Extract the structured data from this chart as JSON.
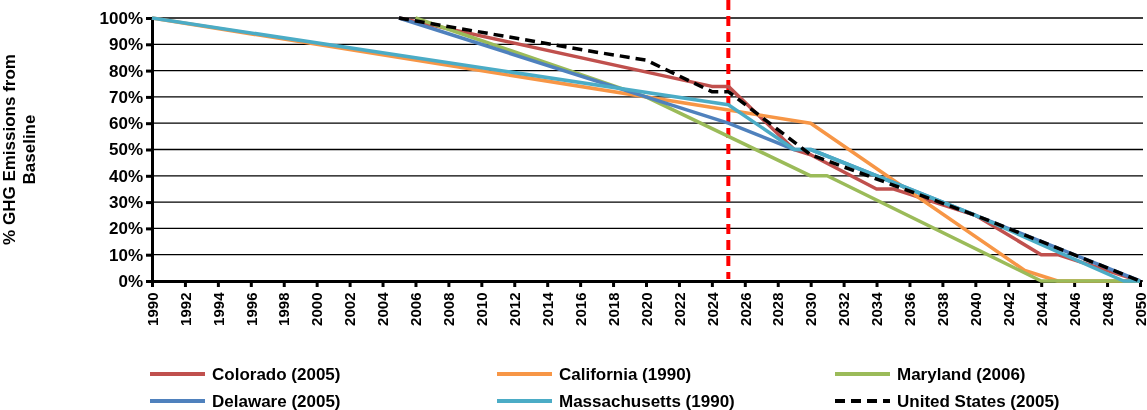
{
  "chart_data": {
    "type": "line",
    "ylabel": "% GHG Emissions from Baseline",
    "xlim": [
      1990,
      2050
    ],
    "xticks": [
      1990,
      1992,
      1994,
      1996,
      1998,
      2000,
      2002,
      2004,
      2006,
      2008,
      2010,
      2012,
      2014,
      2016,
      2018,
      2020,
      2022,
      2024,
      2026,
      2028,
      2030,
      2032,
      2034,
      2036,
      2038,
      2040,
      2042,
      2044,
      2046,
      2048,
      2050
    ],
    "ylim": [
      0,
      100
    ],
    "yticks": [
      {
        "value": 0,
        "label": "0%"
      },
      {
        "value": 10,
        "label": "10%"
      },
      {
        "value": 20,
        "label": "20%"
      },
      {
        "value": 30,
        "label": "30%"
      },
      {
        "value": 40,
        "label": "40%"
      },
      {
        "value": 50,
        "label": "50%"
      },
      {
        "value": 60,
        "label": "60%"
      },
      {
        "value": 70,
        "label": "70%"
      },
      {
        "value": 80,
        "label": "80%"
      },
      {
        "value": 90,
        "label": "90%"
      },
      {
        "value": 100,
        "label": "100%"
      }
    ],
    "grid": "y",
    "legend": "bottom",
    "ref_lines": [
      {
        "axis": "x",
        "value": 2025,
        "color": "#ff0000",
        "line_style": "dashed"
      }
    ],
    "series": [
      {
        "name": "Colorado (2005)",
        "color": "#c0504d",
        "x": [
          2005,
          2024,
          2025,
          2029,
          2030,
          2034,
          2035,
          2040,
          2044,
          2045,
          2050
        ],
        "values": [
          100,
          74,
          74,
          50,
          48,
          35,
          35,
          25,
          10,
          10,
          0
        ]
      },
      {
        "name": "California (1990)",
        "color": "#f79646",
        "x": [
          1990,
          2025,
          2030,
          2043,
          2045,
          2050
        ],
        "values": [
          100,
          65,
          60,
          4,
          0,
          0
        ]
      },
      {
        "name": "Maryland (2006)",
        "color": "#9bbb59",
        "x": [
          2006,
          2020,
          2030,
          2031,
          2044,
          2050
        ],
        "values": [
          100,
          70,
          40,
          40,
          0,
          0
        ]
      },
      {
        "name": "Delaware (2005)",
        "color": "#4f81bd",
        "x": [
          2005,
          2020,
          2025,
          2029,
          2030,
          2050
        ],
        "values": [
          100,
          70,
          60,
          50,
          50,
          0
        ]
      },
      {
        "name": "Massachusetts (1990)",
        "color": "#4bacc6",
        "x": [
          1990,
          2025,
          2029,
          2030,
          2040,
          2049,
          2050
        ],
        "values": [
          100,
          67,
          50,
          50,
          25,
          0,
          0
        ]
      },
      {
        "name": "United States (2005)",
        "color": "#000000",
        "line_style": "dashed",
        "x": [
          2005,
          2017,
          2020,
          2022,
          2024,
          2025,
          2030,
          2040,
          2050
        ],
        "values": [
          100,
          87,
          84,
          78,
          72,
          72,
          48,
          25,
          0
        ]
      }
    ]
  }
}
